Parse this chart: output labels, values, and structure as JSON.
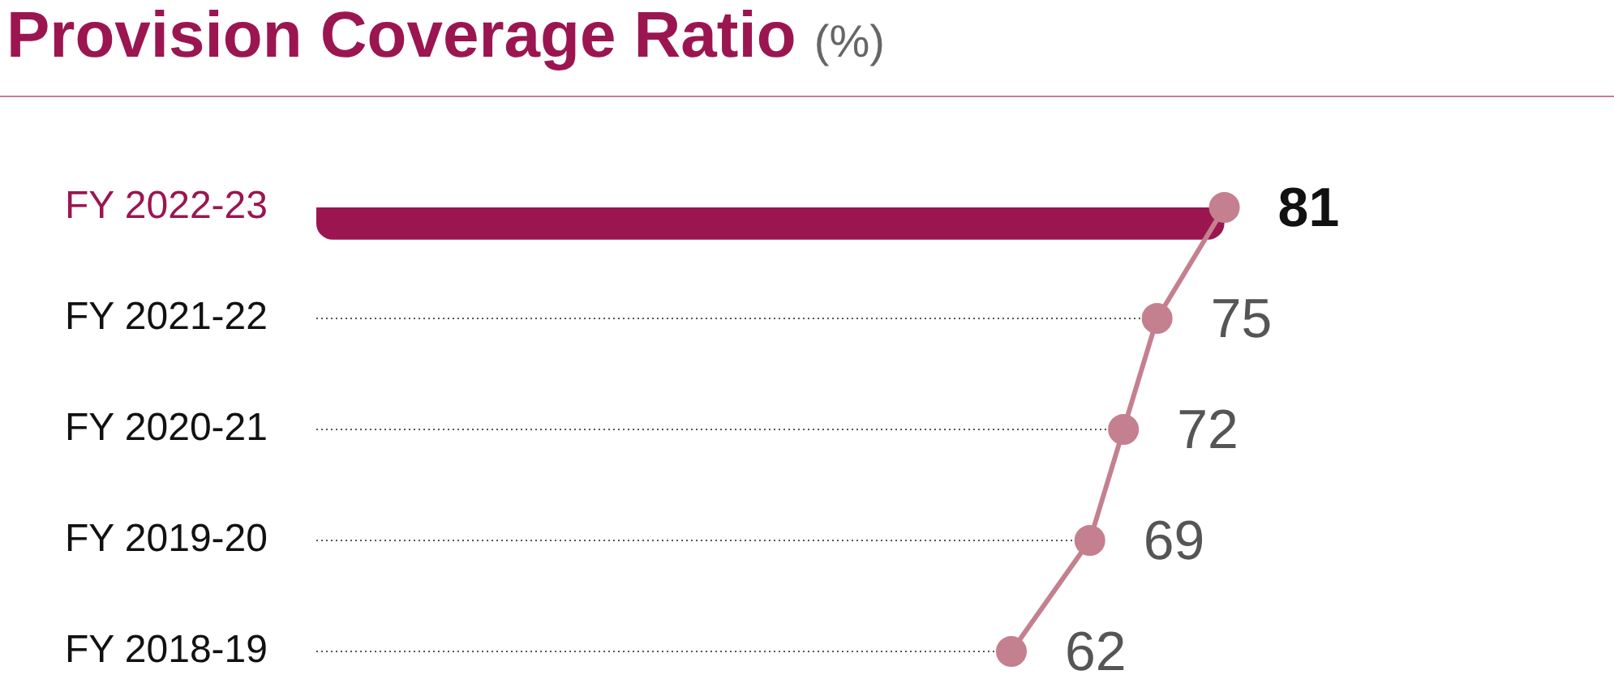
{
  "chart_data": {
    "type": "bar",
    "orientation": "horizontal",
    "title": "Provision Coverage Ratio (%)",
    "categories": [
      "FY 2022-23",
      "FY 2021-22",
      "FY 2020-21",
      "FY 2019-20",
      "FY 2018-19"
    ],
    "series": [
      {
        "color": "#9b1650",
        "values": [
          81,
          null,
          null,
          null,
          null
        ]
      },
      {
        "type": "line",
        "color": "#c4808f",
        "values": [
          81,
          75,
          72,
          69,
          62
        ],
        "value_labels": [
          "81",
          "75",
          "72",
          "69",
          "62"
        ]
      }
    ],
    "marker": "circle",
    "line_style": "solid",
    "grid": "y"
  }
}
